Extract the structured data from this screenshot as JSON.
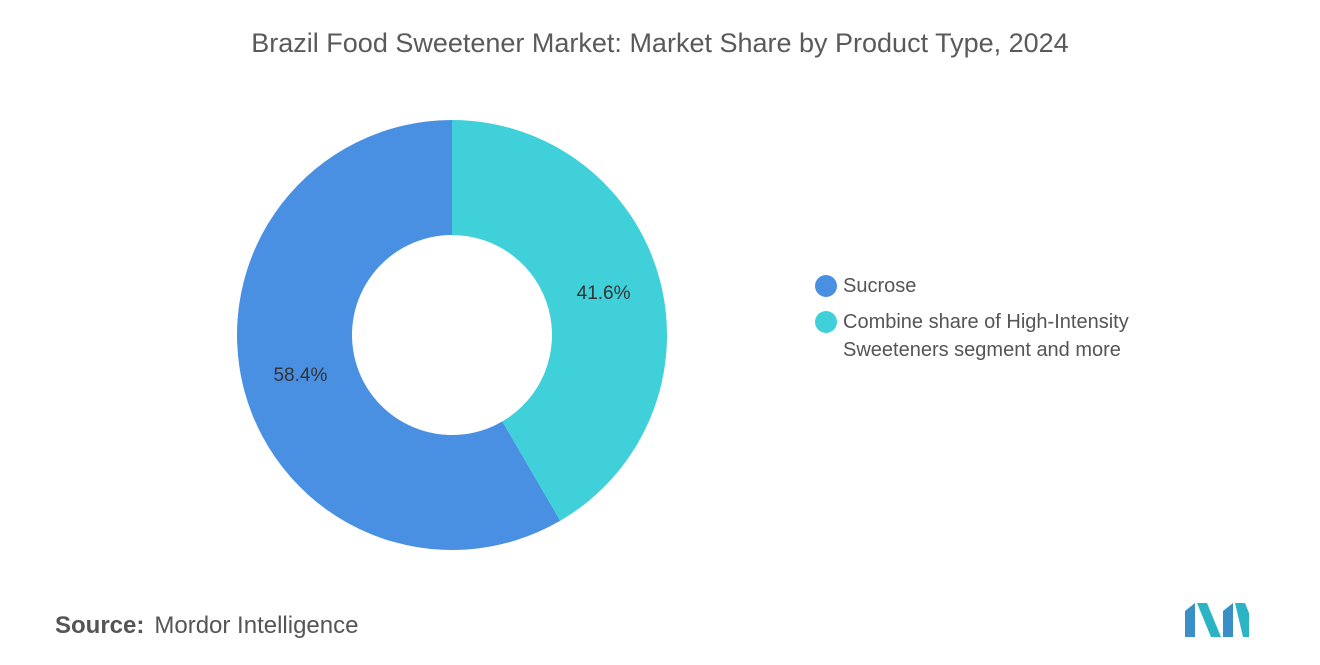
{
  "chart_data": {
    "type": "donut",
    "title": "Brazil Food Sweetener Market: Market Share by Product Type, 2024",
    "categories": [
      "Sucrose",
      "Combine share of High-Intensity Sweeteners segment and more"
    ],
    "values": [
      58.4,
      41.6
    ],
    "value_labels": [
      "58.4%",
      "41.6%"
    ],
    "colors": [
      "#4a90e2",
      "#40d0da"
    ],
    "direction": "counterclockwise",
    "legend": "right"
  },
  "footer": {
    "source_label": "Source:",
    "source": "Mordor Intelligence"
  }
}
